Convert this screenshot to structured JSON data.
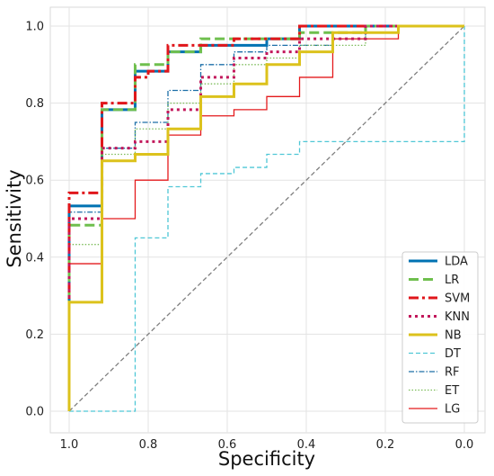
{
  "chart_data": {
    "type": "line",
    "title": "",
    "xlabel": "Specificity",
    "ylabel": "Sensitivity",
    "xlim": [
      1.0,
      0.0
    ],
    "ylim": [
      0.0,
      1.0
    ],
    "x_reversed": true,
    "x_ticks": [
      "1.0",
      "0.8",
      "0.6",
      "0.4",
      "0.2",
      "0.0"
    ],
    "y_ticks": [
      "0.0",
      "0.2",
      "0.4",
      "0.6",
      "0.8",
      "1.0"
    ],
    "grid": true,
    "legend_position": "bottom-right",
    "series": [
      {
        "name": "LDA",
        "color": "#0072b2",
        "style": "solid",
        "width": 3,
        "points": [
          [
            1.0,
            0.0
          ],
          [
            1.0,
            0.533
          ],
          [
            0.917,
            0.533
          ],
          [
            0.917,
            0.783
          ],
          [
            0.833,
            0.783
          ],
          [
            0.833,
            0.883
          ],
          [
            0.75,
            0.883
          ],
          [
            0.75,
            0.933
          ],
          [
            0.667,
            0.933
          ],
          [
            0.667,
            0.95
          ],
          [
            0.5,
            0.95
          ],
          [
            0.5,
            0.967
          ],
          [
            0.417,
            0.967
          ],
          [
            0.417,
            1.0
          ],
          [
            0.0,
            1.0
          ]
        ]
      },
      {
        "name": "LR",
        "color": "#6fbf4e",
        "style": "dashed",
        "width": 3,
        "points": [
          [
            1.0,
            0.0
          ],
          [
            1.0,
            0.483
          ],
          [
            0.917,
            0.483
          ],
          [
            0.917,
            0.783
          ],
          [
            0.833,
            0.783
          ],
          [
            0.833,
            0.9
          ],
          [
            0.75,
            0.9
          ],
          [
            0.75,
            0.933
          ],
          [
            0.667,
            0.933
          ],
          [
            0.667,
            0.967
          ],
          [
            0.5,
            0.967
          ],
          [
            0.5,
            0.967
          ],
          [
            0.417,
            0.967
          ],
          [
            0.417,
            0.983
          ],
          [
            0.25,
            0.983
          ],
          [
            0.25,
            1.0
          ],
          [
            0.0,
            1.0
          ]
        ]
      },
      {
        "name": "SVM",
        "color": "#e0161b",
        "style": "dashdot",
        "width": 3,
        "points": [
          [
            1.0,
            0.0
          ],
          [
            1.0,
            0.567
          ],
          [
            0.917,
            0.567
          ],
          [
            0.917,
            0.8
          ],
          [
            0.833,
            0.8
          ],
          [
            0.833,
            0.867
          ],
          [
            0.8,
            0.867
          ],
          [
            0.8,
            0.883
          ],
          [
            0.75,
            0.883
          ],
          [
            0.75,
            0.95
          ],
          [
            0.583,
            0.95
          ],
          [
            0.583,
            0.967
          ],
          [
            0.417,
            0.967
          ],
          [
            0.417,
            1.0
          ],
          [
            0.0,
            1.0
          ]
        ]
      },
      {
        "name": "KNN",
        "color": "#c2185b",
        "style": "dotted",
        "width": 3,
        "points": [
          [
            1.0,
            0.0
          ],
          [
            1.0,
            0.5
          ],
          [
            0.917,
            0.5
          ],
          [
            0.917,
            0.683
          ],
          [
            0.833,
            0.683
          ],
          [
            0.833,
            0.7
          ],
          [
            0.75,
            0.7
          ],
          [
            0.75,
            0.783
          ],
          [
            0.667,
            0.783
          ],
          [
            0.667,
            0.867
          ],
          [
            0.583,
            0.867
          ],
          [
            0.583,
            0.917
          ],
          [
            0.5,
            0.917
          ],
          [
            0.5,
            0.933
          ],
          [
            0.417,
            0.933
          ],
          [
            0.417,
            0.967
          ],
          [
            0.25,
            0.967
          ],
          [
            0.25,
            1.0
          ],
          [
            0.0,
            1.0
          ]
        ]
      },
      {
        "name": "NB",
        "color": "#dcc21c",
        "style": "solid",
        "width": 3,
        "points": [
          [
            1.0,
            0.0
          ],
          [
            1.0,
            0.283
          ],
          [
            0.917,
            0.283
          ],
          [
            0.917,
            0.65
          ],
          [
            0.833,
            0.65
          ],
          [
            0.833,
            0.667
          ],
          [
            0.75,
            0.667
          ],
          [
            0.75,
            0.733
          ],
          [
            0.667,
            0.733
          ],
          [
            0.667,
            0.817
          ],
          [
            0.583,
            0.817
          ],
          [
            0.583,
            0.85
          ],
          [
            0.5,
            0.85
          ],
          [
            0.5,
            0.9
          ],
          [
            0.417,
            0.9
          ],
          [
            0.417,
            0.933
          ],
          [
            0.333,
            0.933
          ],
          [
            0.333,
            0.983
          ],
          [
            0.167,
            0.983
          ],
          [
            0.167,
            1.0
          ],
          [
            0.0,
            1.0
          ]
        ]
      },
      {
        "name": "DT",
        "color": "#4fc7d6",
        "style": "dashed-thin",
        "width": 1.3,
        "points": [
          [
            1.0,
            0.0
          ],
          [
            0.833,
            0.0
          ],
          [
            0.833,
            0.45
          ],
          [
            0.75,
            0.45
          ],
          [
            0.75,
            0.583
          ],
          [
            0.667,
            0.583
          ],
          [
            0.667,
            0.617
          ],
          [
            0.583,
            0.617
          ],
          [
            0.583,
            0.633
          ],
          [
            0.5,
            0.633
          ],
          [
            0.5,
            0.667
          ],
          [
            0.417,
            0.667
          ],
          [
            0.417,
            0.7
          ],
          [
            0.0,
            0.7
          ],
          [
            0.0,
            1.0
          ]
        ]
      },
      {
        "name": "RF",
        "color": "#1d6fa8",
        "style": "dashdot-thin",
        "width": 1.3,
        "points": [
          [
            1.0,
            0.0
          ],
          [
            1.0,
            0.517
          ],
          [
            0.917,
            0.517
          ],
          [
            0.917,
            0.683
          ],
          [
            0.833,
            0.683
          ],
          [
            0.833,
            0.75
          ],
          [
            0.75,
            0.75
          ],
          [
            0.75,
            0.833
          ],
          [
            0.667,
            0.833
          ],
          [
            0.667,
            0.9
          ],
          [
            0.583,
            0.9
          ],
          [
            0.583,
            0.933
          ],
          [
            0.5,
            0.933
          ],
          [
            0.5,
            0.95
          ],
          [
            0.333,
            0.95
          ],
          [
            0.333,
            0.967
          ],
          [
            0.25,
            0.967
          ],
          [
            0.25,
            1.0
          ],
          [
            0.0,
            1.0
          ]
        ]
      },
      {
        "name": "ET",
        "color": "#7cbc5a",
        "style": "dotted-thin",
        "width": 1.3,
        "points": [
          [
            1.0,
            0.0
          ],
          [
            1.0,
            0.433
          ],
          [
            0.917,
            0.433
          ],
          [
            0.917,
            0.667
          ],
          [
            0.833,
            0.667
          ],
          [
            0.833,
            0.733
          ],
          [
            0.75,
            0.733
          ],
          [
            0.75,
            0.8
          ],
          [
            0.667,
            0.8
          ],
          [
            0.667,
            0.85
          ],
          [
            0.583,
            0.85
          ],
          [
            0.583,
            0.9
          ],
          [
            0.5,
            0.9
          ],
          [
            0.5,
            0.917
          ],
          [
            0.417,
            0.917
          ],
          [
            0.417,
            0.95
          ],
          [
            0.25,
            0.95
          ],
          [
            0.25,
            0.983
          ],
          [
            0.167,
            0.983
          ],
          [
            0.167,
            1.0
          ],
          [
            0.0,
            1.0
          ]
        ]
      },
      {
        "name": "LG",
        "color": "#e41a1c",
        "style": "solid-thin",
        "width": 1.3,
        "points": [
          [
            1.0,
            0.0
          ],
          [
            1.0,
            0.383
          ],
          [
            0.917,
            0.383
          ],
          [
            0.917,
            0.5
          ],
          [
            0.833,
            0.5
          ],
          [
            0.833,
            0.6
          ],
          [
            0.75,
            0.6
          ],
          [
            0.75,
            0.717
          ],
          [
            0.667,
            0.717
          ],
          [
            0.667,
            0.767
          ],
          [
            0.583,
            0.767
          ],
          [
            0.583,
            0.783
          ],
          [
            0.5,
            0.783
          ],
          [
            0.5,
            0.817
          ],
          [
            0.417,
            0.817
          ],
          [
            0.417,
            0.867
          ],
          [
            0.333,
            0.867
          ],
          [
            0.333,
            0.967
          ],
          [
            0.167,
            0.967
          ],
          [
            0.167,
            1.0
          ],
          [
            0.0,
            1.0
          ]
        ]
      }
    ],
    "reference_line": {
      "color": "#7f7f7f",
      "style": "dashed",
      "points": [
        [
          1.0,
          0.0
        ],
        [
          0.0,
          1.0
        ]
      ]
    }
  }
}
